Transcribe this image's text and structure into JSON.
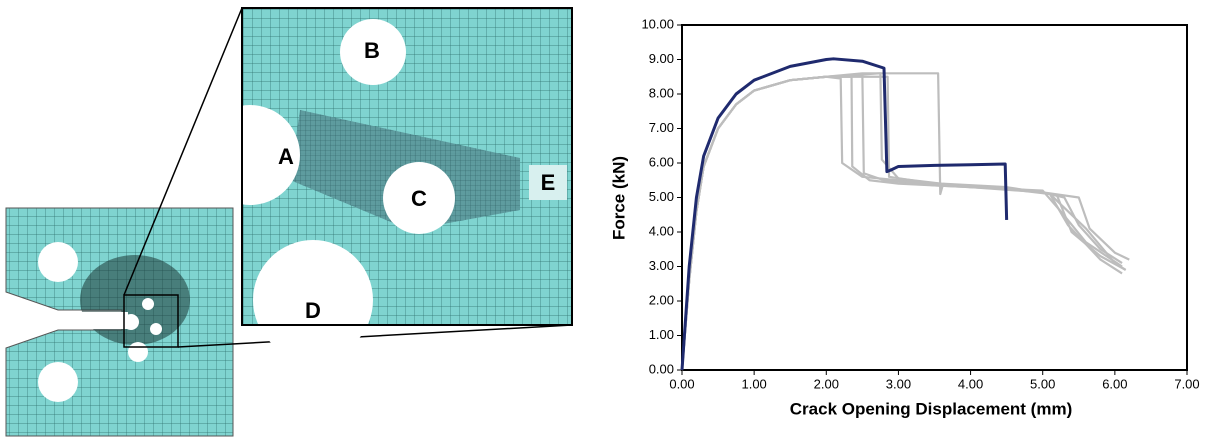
{
  "figure": {
    "labels": [
      "A",
      "B",
      "C",
      "D",
      "E"
    ]
  },
  "chart_data": {
    "type": "line",
    "xlabel": "Crack Opening Displacement (mm)",
    "ylabel": "Force (kN)",
    "xlim": [
      0,
      7
    ],
    "ylim": [
      0,
      10
    ],
    "xticks": [
      {
        "value": 0,
        "label": "0.00"
      },
      {
        "value": 1,
        "label": "1.00"
      },
      {
        "value": 2,
        "label": "2.00"
      },
      {
        "value": 3,
        "label": "3.00"
      },
      {
        "value": 4,
        "label": "4.00"
      },
      {
        "value": 5,
        "label": "5.00"
      },
      {
        "value": 6,
        "label": "6.00"
      },
      {
        "value": 7,
        "label": "7.00"
      }
    ],
    "yticks": [
      {
        "value": 0,
        "label": "0.00"
      },
      {
        "value": 1,
        "label": "1.00"
      },
      {
        "value": 2,
        "label": "2.00"
      },
      {
        "value": 3,
        "label": "3.00"
      },
      {
        "value": 4,
        "label": "4.00"
      },
      {
        "value": 5,
        "label": "5.00"
      },
      {
        "value": 6,
        "label": "6.00"
      },
      {
        "value": 7,
        "label": "7.00"
      },
      {
        "value": 8,
        "label": "8.00"
      },
      {
        "value": 9,
        "label": "9.00"
      },
      {
        "value": 10,
        "label": "10.00"
      }
    ],
    "series": [
      {
        "color": "#bdbdbd",
        "x": [
          0,
          0.1,
          0.2,
          0.3,
          0.5,
          0.75,
          1,
          1.5,
          2,
          2.35,
          2.36,
          2.6,
          3,
          4,
          4.5,
          5,
          5.3,
          5.5,
          5.8,
          6.1
        ],
        "values": [
          0,
          2.6,
          4.6,
          5.9,
          7,
          7.7,
          8.1,
          8.4,
          8.5,
          8.5,
          5.9,
          5.5,
          5.4,
          5.3,
          5.25,
          5.15,
          5,
          4.2,
          3.5,
          3.1
        ]
      },
      {
        "color": "#bdbdbd",
        "x": [
          0,
          0.1,
          0.2,
          0.3,
          0.5,
          0.75,
          1,
          1.5,
          2,
          2.5,
          2.52,
          2.8,
          3.5,
          4.5,
          5,
          5.2,
          5.4,
          5.8,
          6.15
        ],
        "values": [
          0,
          2.6,
          4.6,
          5.9,
          7,
          7.7,
          8.1,
          8.4,
          8.5,
          8.55,
          5.7,
          5.5,
          5.35,
          5.25,
          5.15,
          5.05,
          4,
          3.3,
          2.9
        ]
      },
      {
        "color": "#bdbdbd",
        "x": [
          0,
          0.1,
          0.2,
          0.3,
          0.5,
          0.75,
          1,
          1.5,
          2,
          2.75,
          2.77,
          3,
          4,
          5,
          5.5,
          5.65,
          6,
          6.2
        ],
        "values": [
          0,
          2.6,
          4.6,
          5.9,
          7,
          7.7,
          8.1,
          8.4,
          8.5,
          8.6,
          6.1,
          5.55,
          5.3,
          5.15,
          5,
          4.1,
          3.4,
          3.2
        ]
      },
      {
        "color": "#bdbdbd",
        "x": [
          0,
          0.1,
          0.2,
          0.3,
          0.5,
          0.75,
          1,
          1.5,
          2,
          2.5,
          3.55,
          3.58,
          3.62,
          4.5,
          5.1,
          5.35,
          5.8,
          6.1
        ],
        "values": [
          0,
          2.6,
          4.6,
          5.9,
          7,
          7.7,
          8.1,
          8.4,
          8.5,
          8.6,
          8.6,
          5.1,
          5.4,
          5.3,
          5.1,
          4.2,
          3.2,
          2.8
        ]
      },
      {
        "color": "#bdbdbd",
        "x": [
          0,
          0.1,
          0.2,
          0.3,
          0.5,
          0.75,
          1,
          1.5,
          2,
          2.2,
          2.22,
          2.5,
          3.5,
          4.5,
          5.1,
          5.6,
          6,
          6.15
        ],
        "values": [
          0,
          2.6,
          4.6,
          5.9,
          7,
          7.7,
          8.1,
          8.4,
          8.5,
          8.45,
          6,
          5.6,
          5.4,
          5.25,
          5.1,
          4.1,
          3.1,
          2.9
        ]
      },
      {
        "color": "#bdbdbd",
        "x": [
          0,
          0.1,
          0.2,
          0.3,
          0.5,
          0.75,
          1,
          1.5,
          2,
          2.85,
          2.87,
          3.5,
          4.5,
          5,
          5.25,
          5.6,
          6.1
        ],
        "values": [
          0,
          2.6,
          4.6,
          5.9,
          7,
          7.7,
          8.1,
          8.4,
          8.5,
          8.5,
          5.6,
          5.4,
          5.25,
          5.2,
          4.6,
          3.7,
          3
        ]
      },
      {
        "color": "#1f2a6e",
        "x": [
          0,
          0.1,
          0.2,
          0.3,
          0.5,
          0.75,
          1,
          1.5,
          2,
          2.1,
          2.5,
          2.8,
          2.84,
          2.9,
          3,
          3.5,
          4,
          4.48,
          4.5
        ],
        "values": [
          0,
          3,
          5,
          6.2,
          7.3,
          8,
          8.4,
          8.8,
          9,
          9.02,
          8.95,
          8.75,
          5.75,
          5.8,
          5.9,
          5.93,
          5.95,
          5.97,
          4.35
        ]
      }
    ]
  }
}
